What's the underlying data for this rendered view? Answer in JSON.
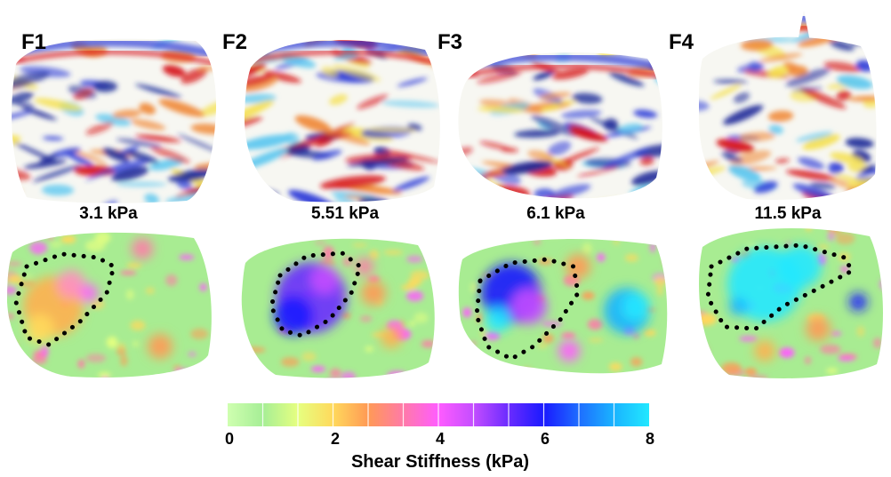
{
  "panels": [
    {
      "stage": "F1",
      "stiffness": "3.1 kPa"
    },
    {
      "stage": "F2",
      "stiffness": "5.51 kPa"
    },
    {
      "stage": "F3",
      "stiffness": "6.1 kPa"
    },
    {
      "stage": "F4",
      "stiffness": "11.5 kPa"
    }
  ],
  "colorbar": {
    "title": "Shear Stiffness (kPa)",
    "ticks": [
      "0",
      "2",
      "4",
      "6",
      "8"
    ],
    "range": [
      0,
      8
    ],
    "colors": [
      "#cfffb0",
      "#a6ee96",
      "#e6ff80",
      "#ffd95c",
      "#ff9a55",
      "#ff7aa8",
      "#ff5cff",
      "#c44dff",
      "#6a2bff",
      "#1a1aff",
      "#1e6dff",
      "#1ab4ff",
      "#22e8ff"
    ]
  },
  "colors": {
    "wave_positive": "#d7191c",
    "wave_negative": "#2c3bd8",
    "tissue_base": "#a8ec92"
  }
}
